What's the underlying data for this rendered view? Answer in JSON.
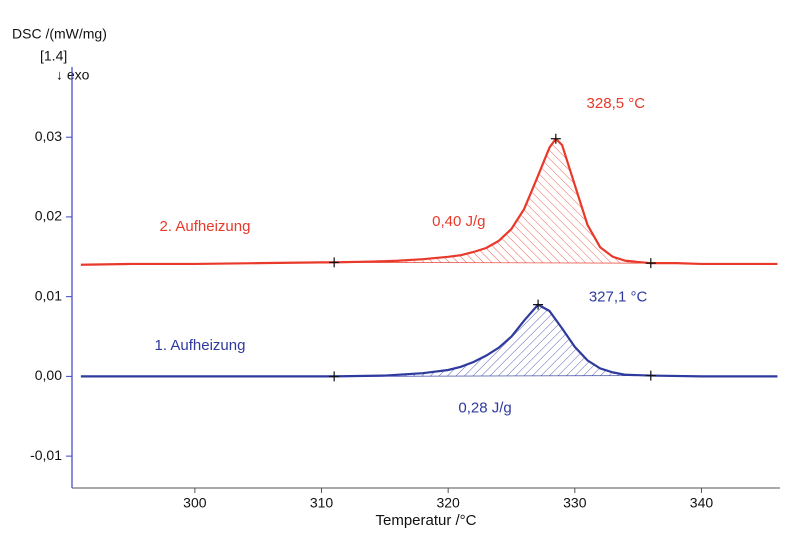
{
  "chart_data": {
    "type": "line",
    "y_label": "DSC /(mW/mg)",
    "y_note": "[1.4]",
    "direction_label": "↓ exo",
    "x_label": "Temperatur /°C",
    "xlim": [
      290.3,
      346.2
    ],
    "xticks": [
      300,
      310,
      320,
      330,
      340
    ],
    "ylim": [
      -0.014,
      0.0378
    ],
    "yticks": [
      {
        "value": -0.01,
        "label": "-0,01"
      },
      {
        "value": 0,
        "label": "0,00"
      },
      {
        "value": 0.01,
        "label": "0,01"
      },
      {
        "value": 0.02,
        "label": "0,02"
      },
      {
        "value": 0.03,
        "label": "0,03"
      }
    ],
    "series": [
      {
        "name": "1. Aufheizung",
        "color": "#2e3a9e",
        "peak_label": "327,1 °C",
        "area_label": "0,28 J/g",
        "integration": [
          311,
          336
        ],
        "x": [
          291,
          295,
          300,
          305,
          310,
          311,
          315,
          318,
          320,
          321,
          322,
          323,
          324,
          325,
          326,
          327.1,
          328,
          329,
          330,
          331,
          332,
          333,
          334,
          336,
          340,
          343,
          346
        ],
        "values": [
          0,
          0,
          0,
          0,
          0,
          0,
          0.0001,
          0.0004,
          0.0008,
          0.0012,
          0.0018,
          0.0026,
          0.0036,
          0.005,
          0.007,
          0.009,
          0.0082,
          0.006,
          0.0037,
          0.002,
          0.001,
          0.0005,
          0.0002,
          0.0001,
          0,
          0,
          0
        ]
      },
      {
        "name": "2. Aufheizung",
        "color": "#e8392a",
        "peak_label": "328,5 °C",
        "area_label": "0,40 J/g",
        "integration": [
          311,
          336
        ],
        "x": [
          291,
          295,
          300,
          305,
          310,
          311,
          314,
          316,
          318,
          320,
          321,
          322,
          323,
          324,
          325,
          326,
          327,
          328,
          328.5,
          329,
          330,
          331,
          332,
          333,
          334,
          336,
          338,
          340,
          343,
          346
        ],
        "values": [
          0.014,
          0.0141,
          0.0141,
          0.0142,
          0.0143,
          0.0143,
          0.0144,
          0.0145,
          0.0147,
          0.015,
          0.0152,
          0.0156,
          0.0161,
          0.017,
          0.0185,
          0.021,
          0.0248,
          0.0287,
          0.0298,
          0.029,
          0.024,
          0.019,
          0.0162,
          0.015,
          0.0145,
          0.0142,
          0.0142,
          0.0141,
          0.0141,
          0.0141
        ]
      }
    ]
  }
}
